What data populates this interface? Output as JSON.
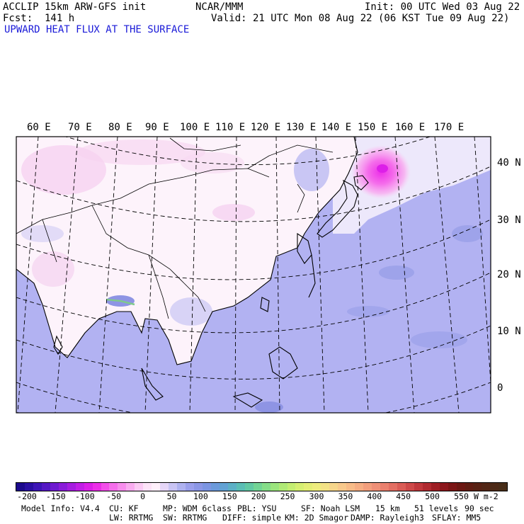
{
  "header": {
    "model": "ACCLIP 15km ARW-GFS init",
    "org": "NCAR/MMM",
    "init": "Init: 00 UTC Wed 03 Aug 22",
    "fcst": "Fcst:  141 h",
    "valid": "Valid: 21 UTC Mon 08 Aug 22 (06 KST Tue 09 Aug 22)",
    "field": "UPWARD HEAT FLUX AT THE SURFACE"
  },
  "map": {
    "lon_labels": [
      "60 E",
      "70 E",
      "80 E",
      "90 E",
      "100 E",
      "110 E",
      "120 E",
      "130 E",
      "140 E",
      "150 E",
      "160 E",
      "170 E"
    ],
    "lat_labels": [
      "40 N",
      "30 N",
      "20 N",
      "10 N",
      "0"
    ]
  },
  "colorbar": {
    "ticks": [
      "-200",
      "-150",
      "-100",
      "-50",
      "0",
      "50",
      "100",
      "150",
      "200",
      "250",
      "300",
      "350",
      "400",
      "450",
      "500",
      "550"
    ],
    "unit": "W m-2",
    "colors": [
      "#1c0a8c",
      "#2a0fa2",
      "#3d15b6",
      "#5518c4",
      "#6e1ad0",
      "#8a1cd9",
      "#a61de0",
      "#c21ee6",
      "#dc1fe8",
      "#ec2ee8",
      "#f24ee9",
      "#f56eeb",
      "#f78ded",
      "#f9acf0",
      "#fbcaf4",
      "#fde3f8",
      "#fff0fb",
      "#e6d6f8",
      "#c9c4f4",
      "#afb2f0",
      "#9ba0ec",
      "#8c97e6",
      "#7c95e2",
      "#6c9adb",
      "#62a2d4",
      "#5cb0c6",
      "#5bbeb5",
      "#62c9a4",
      "#72d495",
      "#85dd88",
      "#9be57d",
      "#b0ea76",
      "#c4ee72",
      "#d6ef72",
      "#e4ee76",
      "#eeec7e",
      "#f3e286",
      "#f6d68b",
      "#f8c98c",
      "#f8bc88",
      "#f6ae83",
      "#f39f7d",
      "#ef9077",
      "#ea806e",
      "#e36f63",
      "#da5c56",
      "#ce4949",
      "#c0383c",
      "#b02a30",
      "#9e1e24",
      "#8c171c",
      "#7b1515",
      "#6c1712",
      "#601c12",
      "#582114",
      "#522616",
      "#4d2a17",
      "#482d18"
    ]
  },
  "footer": {
    "line1": [
      "Model Info: V4.4",
      "CU: KF",
      "MP: WDM 6class",
      "PBL: YSU",
      "SF: Noah LSM",
      "15 km",
      "51 levels",
      "90 sec"
    ],
    "line2": [
      "LW: RRTMG",
      "SW: RRTMG",
      "DIFF: simple",
      "KM: 2D Smagor",
      "DAMP: Rayleigh3",
      "SFLAY: MM5"
    ]
  }
}
